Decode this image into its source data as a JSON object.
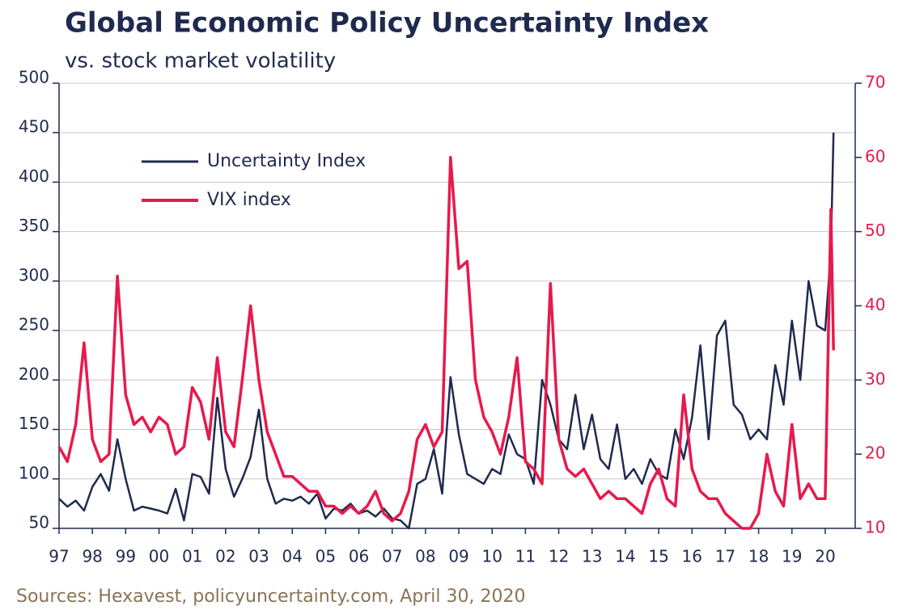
{
  "chart_data": {
    "type": "line",
    "title": "Global Economic Policy Uncertainty Index",
    "subtitle": "vs. stock market volatility",
    "source": "Sources: Hexavest, policyuncertainty.com, April 30, 2020",
    "legend": "upper left",
    "grid": true,
    "x": [
      1997,
      1997.25,
      1997.5,
      1997.75,
      1998,
      1998.25,
      1998.5,
      1998.75,
      1999,
      1999.25,
      1999.5,
      1999.75,
      2000,
      2000.25,
      2000.5,
      2000.75,
      2001,
      2001.25,
      2001.5,
      2001.75,
      2002,
      2002.25,
      2002.5,
      2002.75,
      2003,
      2003.25,
      2003.5,
      2003.75,
      2004,
      2004.25,
      2004.5,
      2004.75,
      2005,
      2005.25,
      2005.5,
      2005.75,
      2006,
      2006.25,
      2006.5,
      2006.75,
      2007,
      2007.25,
      2007.5,
      2007.75,
      2008,
      2008.25,
      2008.5,
      2008.75,
      2009,
      2009.25,
      2009.5,
      2009.75,
      2010,
      2010.25,
      2010.5,
      2010.75,
      2011,
      2011.25,
      2011.5,
      2011.75,
      2012,
      2012.25,
      2012.5,
      2012.75,
      2013,
      2013.25,
      2013.5,
      2013.75,
      2014,
      2014.25,
      2014.5,
      2014.75,
      2015,
      2015.25,
      2015.5,
      2015.75,
      2016,
      2016.25,
      2016.5,
      2016.75,
      2017,
      2017.25,
      2017.5,
      2017.75,
      2018,
      2018.25,
      2018.5,
      2018.75,
      2019,
      2019.25,
      2019.5,
      2019.75,
      2020,
      2020.17,
      2020.25
    ],
    "series": [
      {
        "name": "Uncertainty Index",
        "color": "#1f2a4e",
        "axis": "y",
        "values": [
          80,
          72,
          78,
          68,
          92,
          105,
          88,
          140,
          100,
          68,
          72,
          70,
          68,
          65,
          90,
          58,
          105,
          102,
          85,
          182,
          110,
          82,
          100,
          122,
          170,
          100,
          75,
          80,
          78,
          82,
          75,
          85,
          60,
          70,
          68,
          75,
          65,
          68,
          62,
          70,
          60,
          58,
          50,
          95,
          100,
          130,
          85,
          203,
          145,
          105,
          100,
          95,
          110,
          105,
          145,
          125,
          120,
          95,
          200,
          175,
          140,
          130,
          185,
          130,
          165,
          120,
          110,
          155,
          100,
          110,
          95,
          120,
          105,
          100,
          150,
          120,
          162,
          235,
          140,
          245,
          260,
          175,
          165,
          140,
          150,
          140,
          215,
          175,
          260,
          200,
          300,
          255,
          250,
          330,
          450
        ]
      },
      {
        "name": "VIX index",
        "color": "#e8194b",
        "axis": "y2",
        "values": [
          21,
          19,
          24,
          35,
          22,
          19,
          20,
          44,
          28,
          24,
          25,
          23,
          25,
          24,
          20,
          21,
          29,
          27,
          22,
          33,
          23,
          21,
          30,
          40,
          30,
          23,
          20,
          17,
          17,
          16,
          15,
          15,
          13,
          13,
          12,
          13,
          12,
          13,
          15,
          12,
          11,
          12,
          15,
          22,
          24,
          21,
          23,
          60,
          45,
          46,
          30,
          25,
          23,
          20,
          25,
          33,
          19,
          18,
          16,
          43,
          22,
          18,
          17,
          18,
          16,
          14,
          15,
          14,
          14,
          13,
          12,
          16,
          18,
          14,
          13,
          28,
          18,
          15,
          14,
          14,
          12,
          11,
          10,
          10,
          12,
          20,
          15,
          13,
          24,
          14,
          16,
          14,
          14,
          53,
          34
        ]
      }
    ],
    "xlim": [
      1997,
      2020.9
    ],
    "xticks": [
      {
        "value": 1997,
        "label": "97"
      },
      {
        "value": 1998,
        "label": "98"
      },
      {
        "value": 1999,
        "label": "99"
      },
      {
        "value": 2000,
        "label": "00"
      },
      {
        "value": 2001,
        "label": "01"
      },
      {
        "value": 2002,
        "label": "02"
      },
      {
        "value": 2003,
        "label": "03"
      },
      {
        "value": 2004,
        "label": "04"
      },
      {
        "value": 2005,
        "label": "05"
      },
      {
        "value": 2006,
        "label": "06"
      },
      {
        "value": 2007,
        "label": "07"
      },
      {
        "value": 2008,
        "label": "08"
      },
      {
        "value": 2009,
        "label": "09"
      },
      {
        "value": 2010,
        "label": "10"
      },
      {
        "value": 2011,
        "label": "11"
      },
      {
        "value": 2012,
        "label": "12"
      },
      {
        "value": 2013,
        "label": "13"
      },
      {
        "value": 2014,
        "label": "14"
      },
      {
        "value": 2015,
        "label": "15"
      },
      {
        "value": 2016,
        "label": "16"
      },
      {
        "value": 2017,
        "label": "17"
      },
      {
        "value": 2018,
        "label": "18"
      },
      {
        "value": 2019,
        "label": "19"
      },
      {
        "value": 2020,
        "label": "20"
      }
    ],
    "ylim": [
      50,
      500
    ],
    "yticks": [
      50,
      100,
      150,
      200,
      250,
      300,
      350,
      400,
      450,
      500
    ],
    "y2lim": [
      10,
      70
    ],
    "y2ticks": [
      10,
      20,
      30,
      40,
      50,
      60,
      70
    ]
  }
}
